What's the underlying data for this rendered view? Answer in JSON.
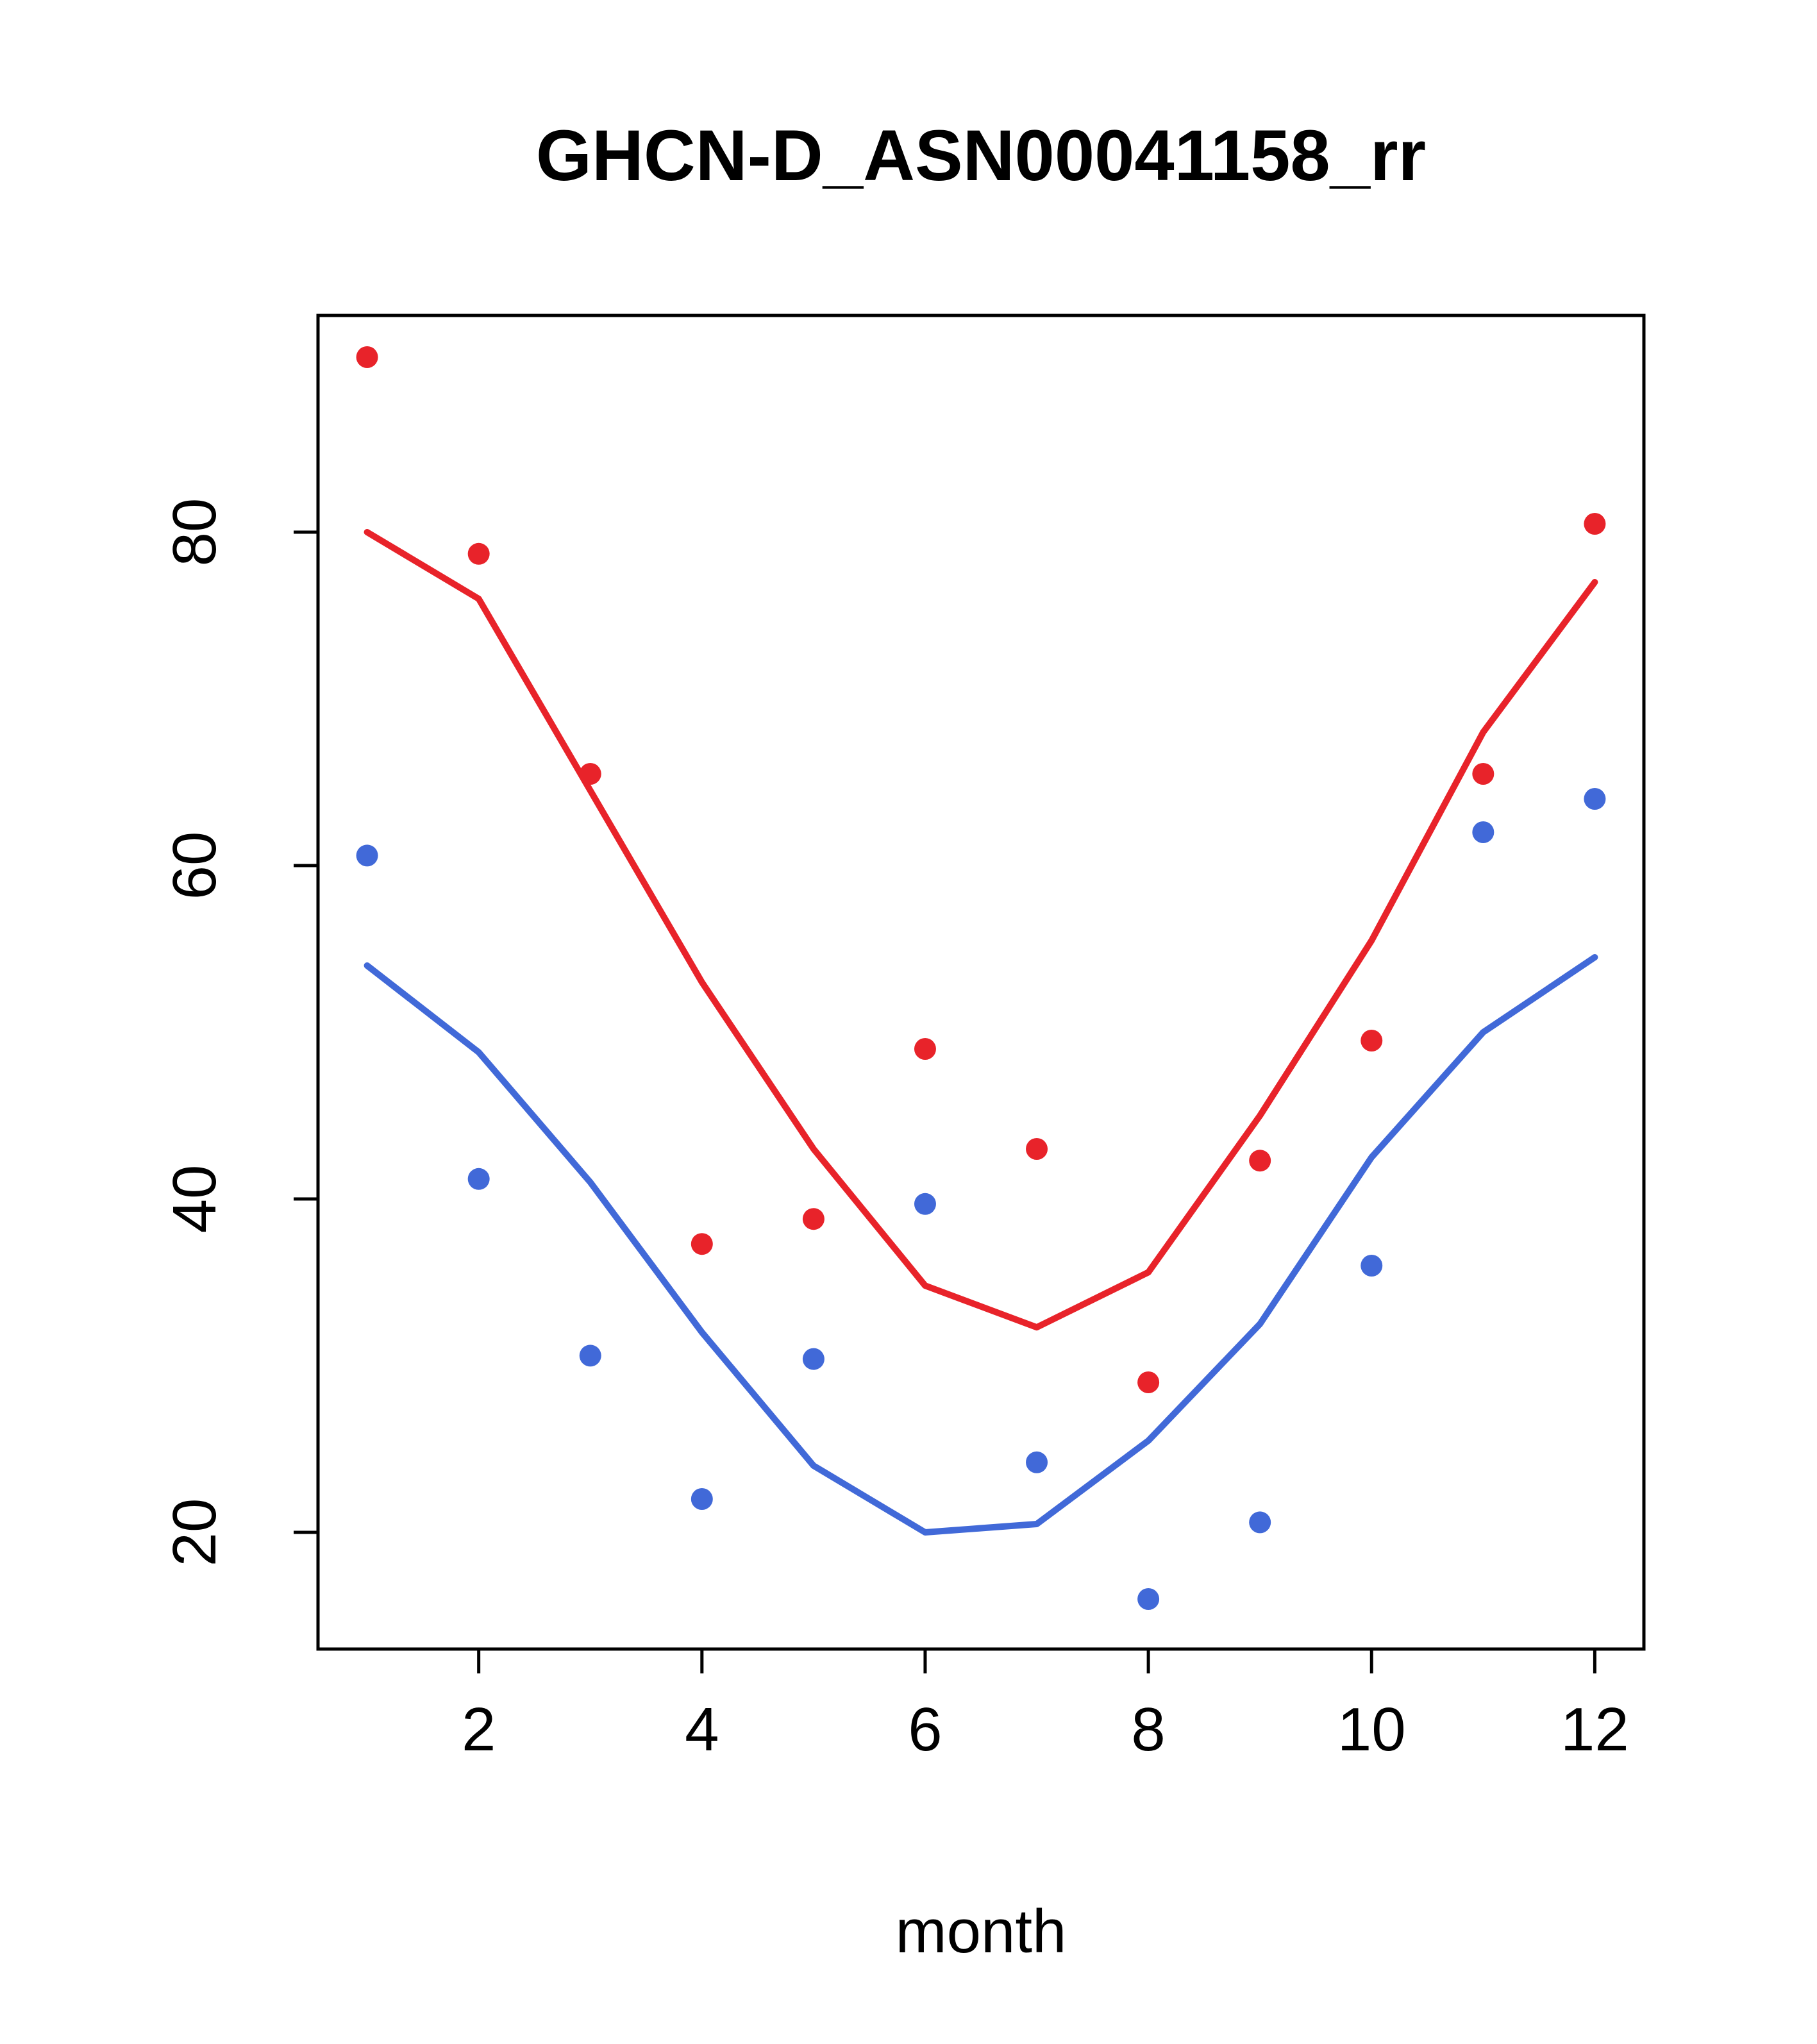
{
  "title": "GHCN-D_ASN00041158_rr",
  "chart_data": {
    "type": "scatter",
    "title": "GHCN-D_ASN00041158_rr",
    "xlabel": "month",
    "ylabel": "",
    "xlim": [
      0.56,
      12.44
    ],
    "ylim": [
      13,
      93
    ],
    "xticks": [
      2,
      4,
      6,
      8,
      10,
      12
    ],
    "yticks": [
      20,
      40,
      60,
      80
    ],
    "x": [
      1,
      2,
      3,
      4,
      5,
      6,
      7,
      8,
      9,
      10,
      11,
      12
    ],
    "grid": false,
    "legend": "none",
    "colors": {
      "red": "#e8232a",
      "blue": "#4169d8",
      "axis": "#000000"
    },
    "series": [
      {
        "name": "red-points",
        "style": "points",
        "color": "#e8232a",
        "values": [
          90.5,
          78.7,
          65.5,
          37.3,
          38.8,
          49.0,
          43.0,
          29.0,
          42.3,
          49.5,
          65.5,
          80.5
        ]
      },
      {
        "name": "red-line",
        "style": "line",
        "color": "#e8232a",
        "values": [
          80.0,
          76.0,
          64.5,
          53.0,
          43.0,
          34.8,
          32.3,
          35.6,
          45.0,
          55.5,
          68.0,
          77.0
        ]
      },
      {
        "name": "blue-points",
        "style": "points",
        "color": "#4169d8",
        "values": [
          60.6,
          41.2,
          30.6,
          22.0,
          30.4,
          39.7,
          24.2,
          16.0,
          20.6,
          36.0,
          62.0,
          64.0
        ]
      },
      {
        "name": "blue-line",
        "style": "line",
        "color": "#4169d8",
        "values": [
          54.0,
          48.8,
          41.0,
          32.0,
          24.0,
          20.0,
          20.5,
          25.5,
          32.5,
          42.5,
          50.0,
          54.5
        ]
      }
    ]
  }
}
